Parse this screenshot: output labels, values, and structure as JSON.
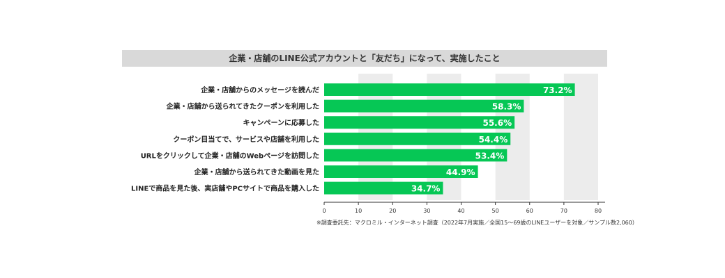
{
  "chart_data": {
    "type": "bar",
    "orientation": "horizontal",
    "title": "企業・店舗のLINE公式アカウントと「友だち」になって、実施したこと",
    "categories": [
      "企業・店舗からのメッセージを読んだ",
      "企業・店舗から送られてきたクーポンを利用した",
      "キャンペーンに応募した",
      "クーポン目当てで、サービスや店舗を利用した",
      "URLをクリックして企業・店舗のWebページを訪問した",
      "企業・店舗から送られてきた動画を見た",
      "LINEで商品を見た後、実店舗やPCサイトで商品を購入した"
    ],
    "values": [
      73.2,
      58.3,
      55.6,
      54.4,
      53.4,
      44.9,
      34.7
    ],
    "value_labels": [
      "73.2%",
      "58.3%",
      "55.6%",
      "54.4%",
      "53.4%",
      "44.9%",
      "34.7%"
    ],
    "xlim": [
      0,
      80
    ],
    "ticks": [
      0,
      10,
      20,
      30,
      40,
      50,
      60,
      70,
      80
    ],
    "bar_color": "#06c755",
    "stripe_color": "#ececec"
  },
  "footnote": "※調査委託先：マクロミル・インターネット調査（2022年7月実施／全国15〜69歳のLINEユーザーを対象／サンプル数2,060）"
}
